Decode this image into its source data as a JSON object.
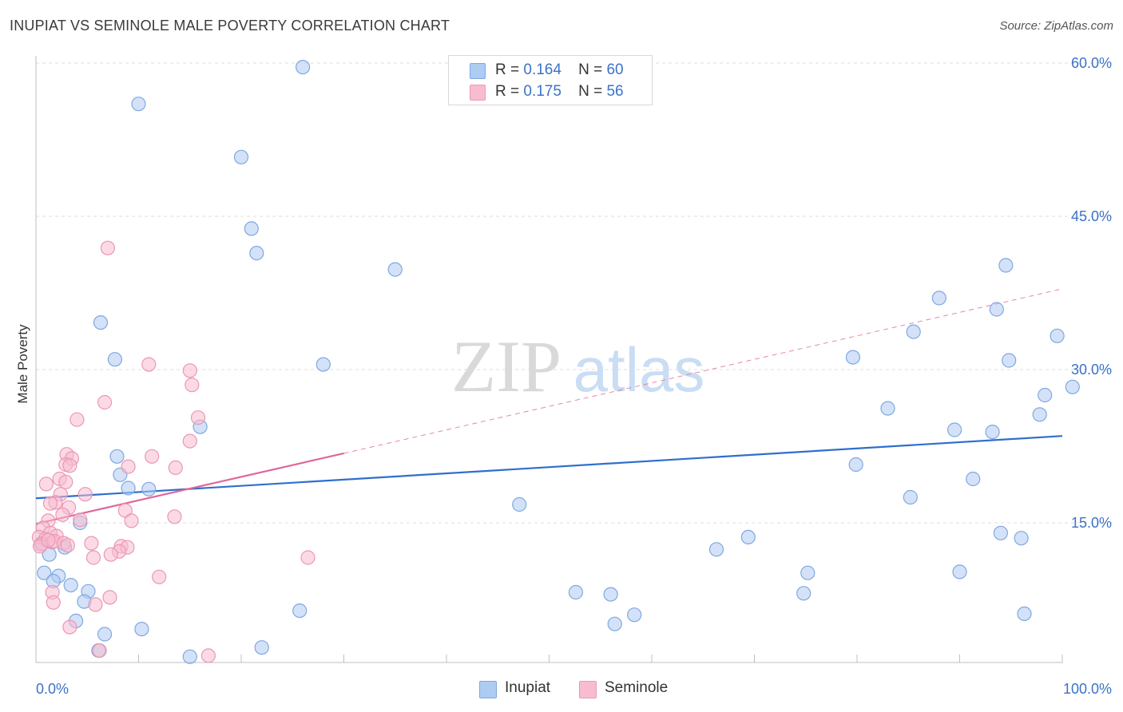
{
  "title": "INUPIAT VS SEMINOLE MALE POVERTY CORRELATION CHART",
  "source": "Source: ZipAtlas.com",
  "watermark": {
    "zip": "ZIP",
    "atlas": "atlas"
  },
  "legend": {
    "inupiat": {
      "r_label": "R =",
      "r_value": "0.164",
      "n_label": "N =",
      "n_value": "60",
      "color": "#aecbf2"
    },
    "seminole": {
      "r_label": "R =",
      "r_value": "0.175",
      "n_label": "N =",
      "n_value": "56",
      "color": "#f7bcd0"
    }
  },
  "bottom_legend": [
    {
      "name": "Inupiat",
      "color": "#aecbf2"
    },
    {
      "name": "Seminole",
      "color": "#f7bcd0"
    }
  ],
  "chart_data": {
    "type": "scatter",
    "xlabel": "",
    "ylabel": "Male Poverty",
    "xlim": [
      0,
      100
    ],
    "ylim": [
      0,
      63
    ],
    "x_tick_labels": [
      {
        "value": 0,
        "label": "0.0%"
      },
      {
        "value": 100,
        "label": "100.0%"
      }
    ],
    "y_tick_labels": [
      {
        "value": 15,
        "label": "15.0%"
      },
      {
        "value": 30,
        "label": "30.0%"
      },
      {
        "value": 45,
        "label": "45.0%"
      },
      {
        "value": 60,
        "label": "60.0%"
      }
    ],
    "grid": "horizontal-dashed",
    "series": [
      {
        "name": "Inupiat",
        "color": "#aecbf2",
        "line_color": "#2f6fcc",
        "trend": {
          "x": [
            0,
            100
          ],
          "y": [
            17.4,
            23.5
          ]
        },
        "points": [
          [
            26,
            59.6
          ],
          [
            10,
            56
          ],
          [
            20,
            50.8
          ],
          [
            21,
            43.8
          ],
          [
            21.5,
            41.4
          ],
          [
            35,
            39.8
          ],
          [
            6.3,
            34.6
          ],
          [
            7.7,
            31
          ],
          [
            28,
            30.5
          ],
          [
            16,
            24.4
          ],
          [
            7.9,
            21.5
          ],
          [
            8.2,
            19.7
          ],
          [
            9,
            18.4
          ],
          [
            11,
            18.3
          ],
          [
            4.3,
            15
          ],
          [
            2.8,
            12.6
          ],
          [
            1.3,
            11.9
          ],
          [
            0.8,
            10.1
          ],
          [
            2.2,
            9.8
          ],
          [
            1.7,
            9.3
          ],
          [
            3.4,
            8.9
          ],
          [
            5.1,
            8.3
          ],
          [
            4.7,
            7.3
          ],
          [
            3.9,
            5.4
          ],
          [
            6.7,
            4.1
          ],
          [
            10.3,
            4.6
          ],
          [
            6.1,
            2.5
          ],
          [
            15,
            1.9
          ],
          [
            22,
            2.8
          ],
          [
            25.7,
            6.4
          ],
          [
            47.1,
            16.8
          ],
          [
            52.6,
            8.2
          ],
          [
            56,
            8
          ],
          [
            56.4,
            5.1
          ],
          [
            58.3,
            6
          ],
          [
            66.3,
            12.4
          ],
          [
            69.4,
            13.6
          ],
          [
            75.2,
            10.1
          ],
          [
            74.8,
            8.1
          ],
          [
            79.6,
            31.2
          ],
          [
            79.9,
            20.7
          ],
          [
            83,
            26.2
          ],
          [
            85.2,
            17.5
          ],
          [
            85.5,
            33.7
          ],
          [
            88,
            37
          ],
          [
            89.5,
            24.1
          ],
          [
            90,
            10.2
          ],
          [
            91.3,
            19.3
          ],
          [
            93.2,
            23.9
          ],
          [
            93.6,
            35.9
          ],
          [
            94,
            14
          ],
          [
            94.5,
            40.2
          ],
          [
            94.8,
            30.9
          ],
          [
            96,
            13.5
          ],
          [
            96.3,
            6.1
          ],
          [
            97.8,
            25.6
          ],
          [
            98.3,
            27.5
          ],
          [
            99.5,
            33.3
          ],
          [
            101,
            28.3
          ],
          [
            0.6,
            13
          ]
        ]
      },
      {
        "name": "Seminole",
        "color": "#f7bcd0",
        "line_color": "#e0679a",
        "trend": {
          "x": [
            0,
            30
          ],
          "y": [
            14.9,
            21.8
          ]
        },
        "trend_extension": {
          "x": [
            30,
            100
          ],
          "y": [
            21.8,
            37.9
          ]
        },
        "points": [
          [
            7,
            41.9
          ],
          [
            11,
            30.5
          ],
          [
            15,
            29.9
          ],
          [
            15.2,
            28.5
          ],
          [
            6.7,
            26.8
          ],
          [
            15.8,
            25.3
          ],
          [
            4,
            25.1
          ],
          [
            15,
            23
          ],
          [
            3,
            21.7
          ],
          [
            3.5,
            21.3
          ],
          [
            11.3,
            21.5
          ],
          [
            2.9,
            20.7
          ],
          [
            3.3,
            20.6
          ],
          [
            9,
            20.5
          ],
          [
            13.6,
            20.4
          ],
          [
            2.3,
            19.3
          ],
          [
            1,
            18.8
          ],
          [
            2.9,
            19
          ],
          [
            4.8,
            17.8
          ],
          [
            2.4,
            17.8
          ],
          [
            1.9,
            17
          ],
          [
            1.4,
            16.9
          ],
          [
            3.2,
            16.5
          ],
          [
            8.7,
            16.2
          ],
          [
            2.6,
            15.8
          ],
          [
            9.3,
            15.2
          ],
          [
            13.5,
            15.6
          ],
          [
            1.2,
            15.2
          ],
          [
            4.3,
            15.3
          ],
          [
            0.7,
            14.5
          ],
          [
            1.4,
            14
          ],
          [
            0.3,
            13.6
          ],
          [
            2,
            13.7
          ],
          [
            0.9,
            13.4
          ],
          [
            1.6,
            13.1
          ],
          [
            0.5,
            12.9
          ],
          [
            1.8,
            13.2
          ],
          [
            2.7,
            13
          ],
          [
            5.4,
            13
          ],
          [
            3.1,
            12.8
          ],
          [
            8.3,
            12.7
          ],
          [
            8.9,
            12.6
          ],
          [
            8.1,
            12.2
          ],
          [
            7.3,
            11.9
          ],
          [
            5.6,
            11.6
          ],
          [
            26.5,
            11.6
          ],
          [
            12,
            9.7
          ],
          [
            1.6,
            8.2
          ],
          [
            7.2,
            7.7
          ],
          [
            1.7,
            7.2
          ],
          [
            5.8,
            7
          ],
          [
            3.3,
            4.8
          ],
          [
            6.2,
            2.5
          ],
          [
            16.8,
            2
          ],
          [
            0.4,
            12.7
          ],
          [
            1.2,
            13.3
          ]
        ]
      }
    ]
  }
}
